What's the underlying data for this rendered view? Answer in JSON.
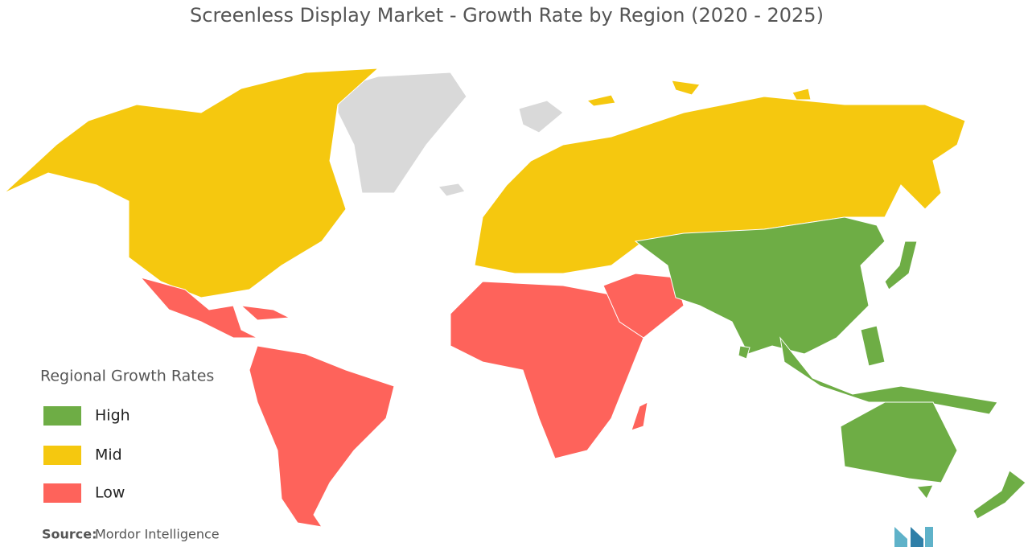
{
  "title": "Screenless Display Market - Growth Rate by Region (2020 - 2025)",
  "legend": {
    "title": "Regional Growth Rates",
    "items": [
      {
        "name": "High",
        "color": "#6ead45"
      },
      {
        "name": "Mid",
        "color": "#f5c80f"
      },
      {
        "name": "Low",
        "color": "#fe635b"
      }
    ]
  },
  "source": {
    "label": "Source:",
    "text": "Mordor Intelligence"
  }
}
